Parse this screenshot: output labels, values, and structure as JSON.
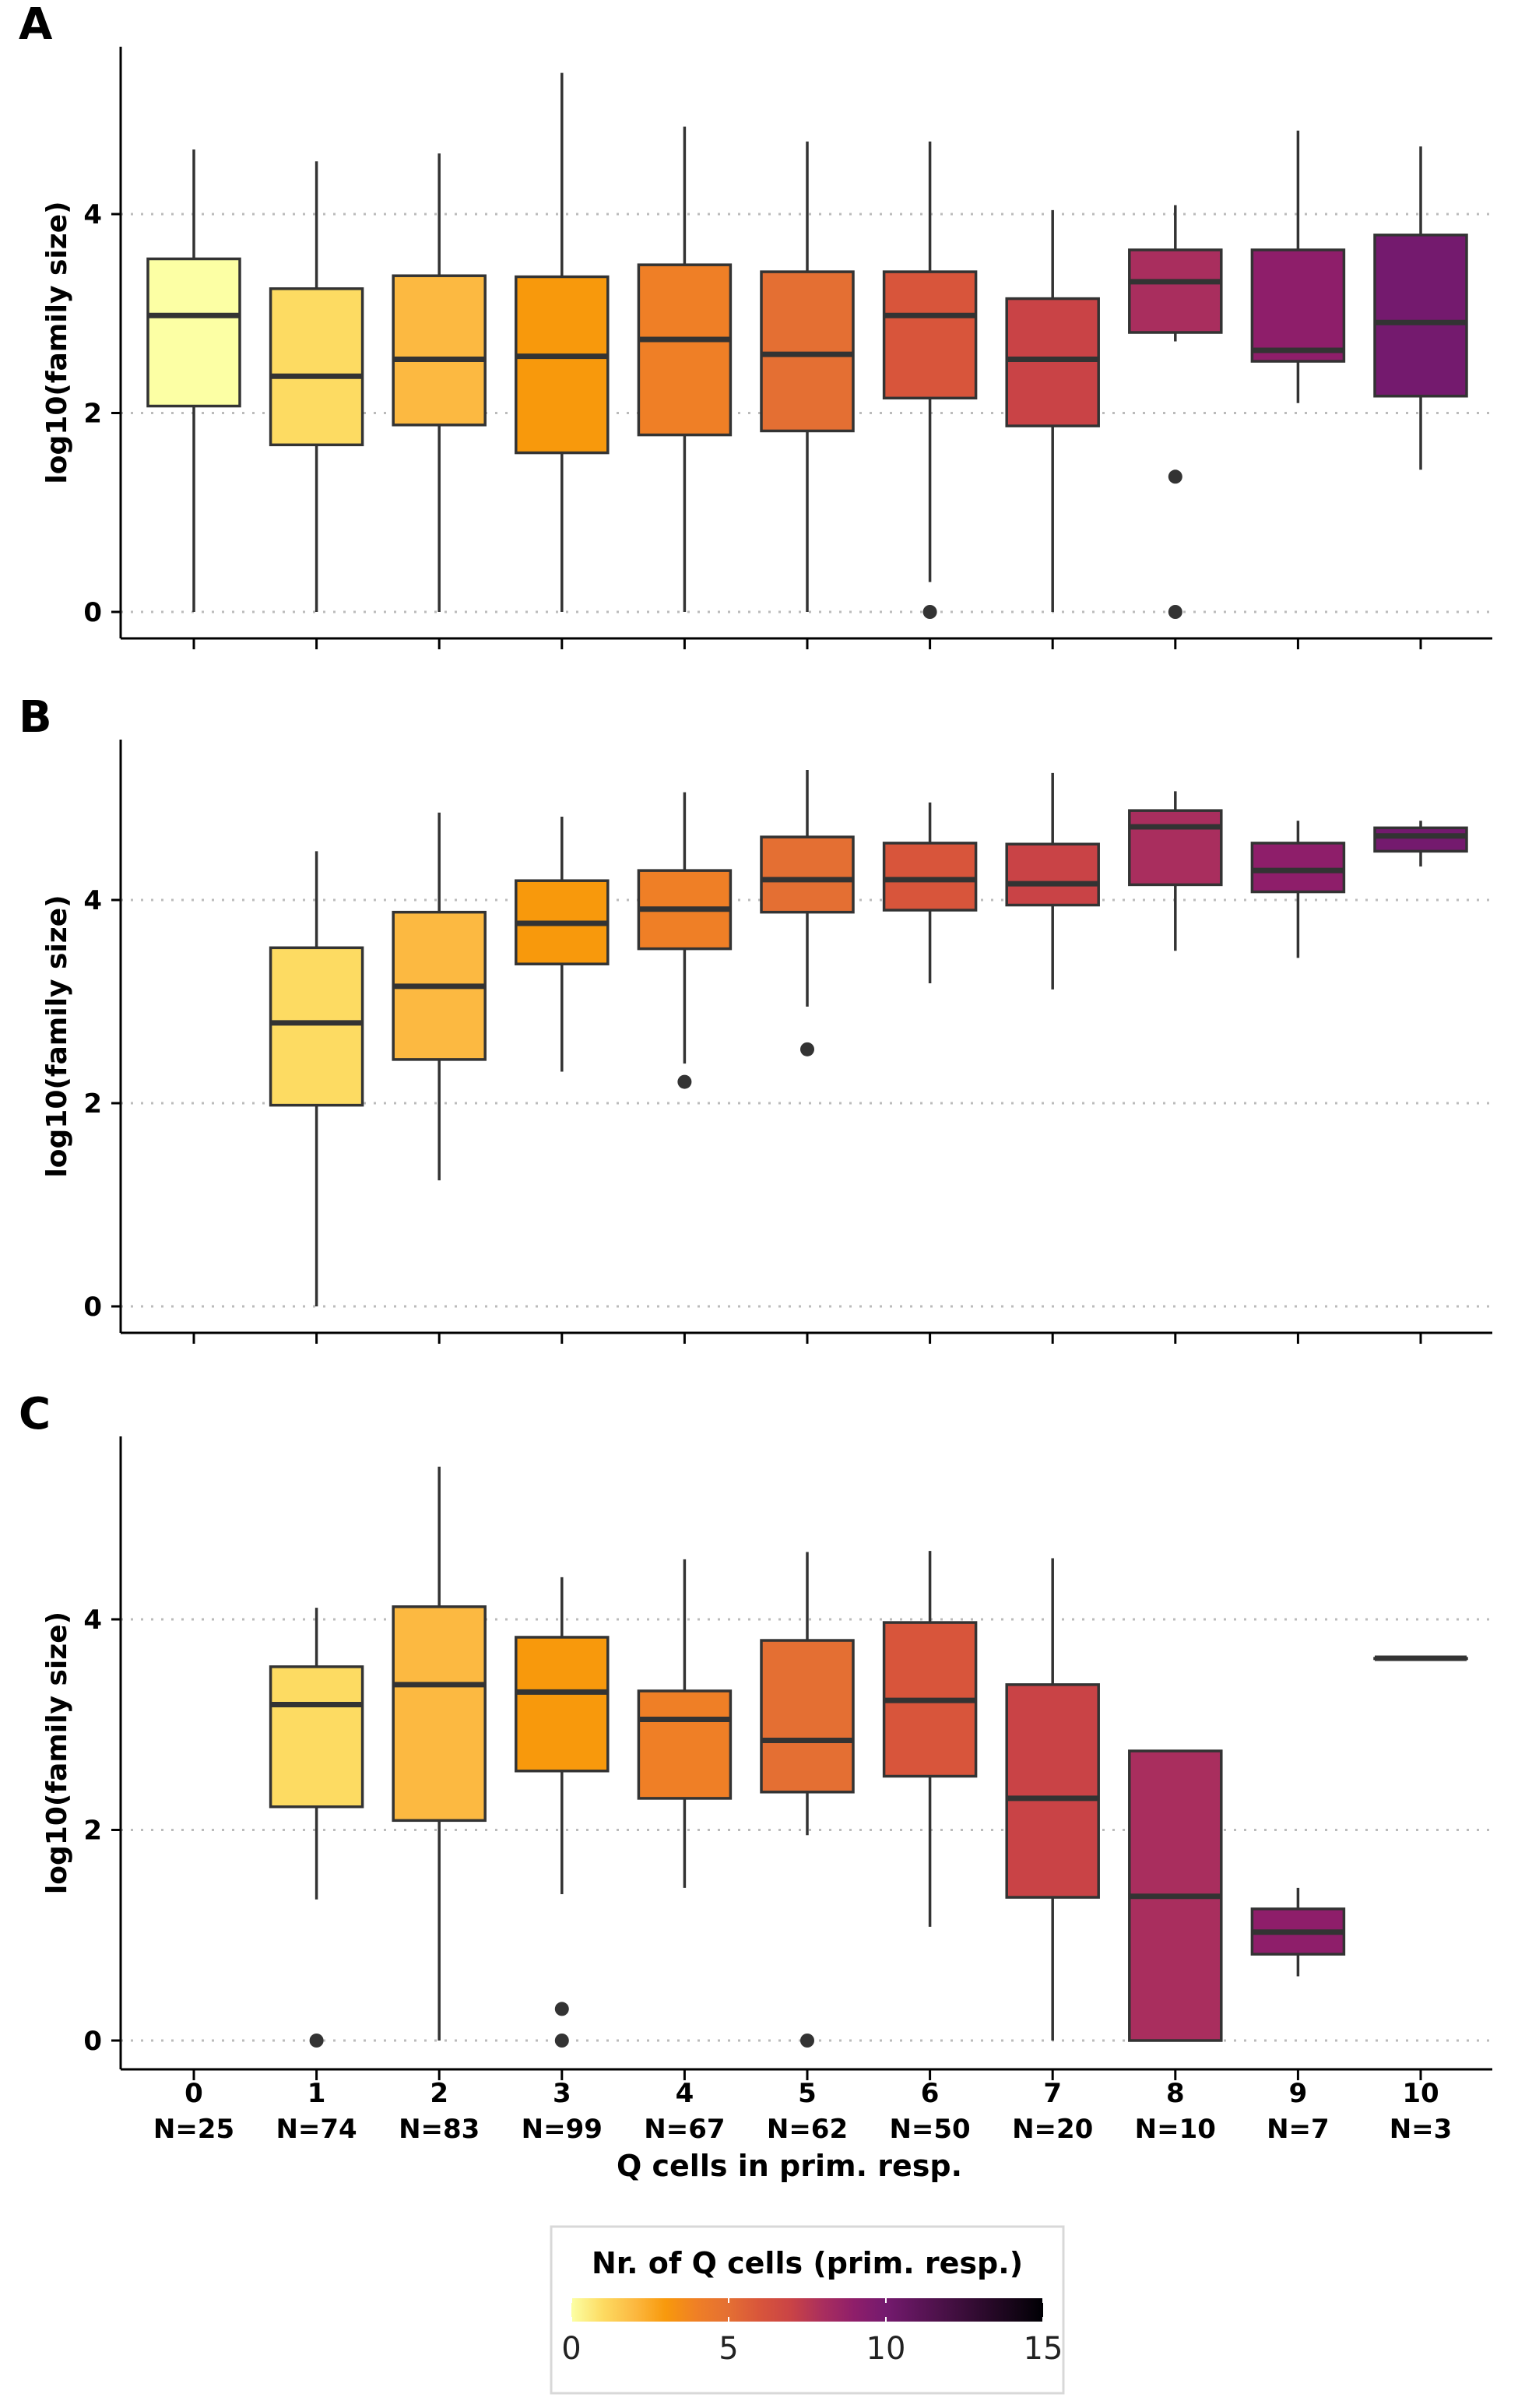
{
  "chart_data": {
    "type": "box",
    "panels": [
      {
        "id": "A",
        "label": "A",
        "ylabel": "log10(family size)",
        "yticks": [
          "0",
          "2",
          "4"
        ],
        "ylim": [
          -0.25,
          5.7
        ],
        "grid": "horizontal dotted",
        "boxes": [
          {
            "x": 0,
            "whislo": 0.0,
            "q1": 2.07,
            "med": 2.98,
            "q3": 3.55,
            "whishi": 4.65,
            "fliers": []
          },
          {
            "x": 1,
            "whislo": 0.0,
            "q1": 1.68,
            "med": 2.37,
            "q3": 3.25,
            "whishi": 4.53,
            "fliers": []
          },
          {
            "x": 2,
            "whislo": 0.0,
            "q1": 1.88,
            "med": 2.54,
            "q3": 3.38,
            "whishi": 4.61,
            "fliers": []
          },
          {
            "x": 3,
            "whislo": 0.0,
            "q1": 1.6,
            "med": 2.57,
            "q3": 3.37,
            "whishi": 5.42,
            "fliers": []
          },
          {
            "x": 4,
            "whislo": 0.0,
            "q1": 1.78,
            "med": 2.74,
            "q3": 3.49,
            "whishi": 4.88,
            "fliers": []
          },
          {
            "x": 5,
            "whislo": 0.0,
            "q1": 1.82,
            "med": 2.59,
            "q3": 3.42,
            "whishi": 4.73,
            "fliers": []
          },
          {
            "x": 6,
            "whislo": 0.3,
            "q1": 2.15,
            "med": 2.98,
            "q3": 3.42,
            "whishi": 4.73,
            "fliers": [
              0.0
            ]
          },
          {
            "x": 7,
            "whislo": 0.0,
            "q1": 1.87,
            "med": 2.54,
            "q3": 3.15,
            "whishi": 4.04,
            "fliers": []
          },
          {
            "x": 8,
            "whislo": 2.72,
            "q1": 2.81,
            "med": 3.32,
            "q3": 3.64,
            "whishi": 4.09,
            "fliers": [
              1.36,
              0.0
            ]
          },
          {
            "x": 9,
            "whislo": 2.1,
            "q1": 2.52,
            "med": 2.63,
            "q3": 3.64,
            "whishi": 4.84,
            "fliers": []
          },
          {
            "x": 10,
            "whislo": 1.43,
            "q1": 2.17,
            "med": 2.91,
            "q3": 3.79,
            "whishi": 4.68,
            "fliers": []
          }
        ]
      },
      {
        "id": "B",
        "label": "B",
        "ylabel": "log10(family size)",
        "yticks": [
          "0",
          "2",
          "4"
        ],
        "ylim": [
          -0.25,
          5.5
        ],
        "grid": "horizontal dotted",
        "boxes": [
          {
            "x": 1,
            "whislo": 0.0,
            "q1": 1.98,
            "med": 2.79,
            "q3": 3.53,
            "whishi": 4.48,
            "fliers": []
          },
          {
            "x": 2,
            "whislo": 1.24,
            "q1": 2.43,
            "med": 3.15,
            "q3": 3.88,
            "whishi": 4.86,
            "fliers": []
          },
          {
            "x": 3,
            "whislo": 2.31,
            "q1": 3.37,
            "med": 3.77,
            "q3": 4.19,
            "whishi": 4.82,
            "fliers": []
          },
          {
            "x": 4,
            "whislo": 2.39,
            "q1": 3.52,
            "med": 3.91,
            "q3": 4.29,
            "whishi": 5.06,
            "fliers": [
              2.21
            ]
          },
          {
            "x": 5,
            "whislo": 2.95,
            "q1": 3.88,
            "med": 4.2,
            "q3": 4.62,
            "whishi": 5.28,
            "fliers": [
              2.53
            ]
          },
          {
            "x": 6,
            "whislo": 3.18,
            "q1": 3.9,
            "med": 4.2,
            "q3": 4.56,
            "whishi": 4.96,
            "fliers": []
          },
          {
            "x": 7,
            "whislo": 3.12,
            "q1": 3.95,
            "med": 4.16,
            "q3": 4.55,
            "whishi": 5.25,
            "fliers": []
          },
          {
            "x": 8,
            "whislo": 3.5,
            "q1": 4.15,
            "med": 4.72,
            "q3": 4.88,
            "whishi": 5.07,
            "fliers": []
          },
          {
            "x": 9,
            "whislo": 3.43,
            "q1": 4.08,
            "med": 4.29,
            "q3": 4.56,
            "whishi": 4.78,
            "fliers": []
          },
          {
            "x": 10,
            "whislo": 4.33,
            "q1": 4.48,
            "med": 4.63,
            "q3": 4.71,
            "whishi": 4.78,
            "fliers": []
          }
        ]
      },
      {
        "id": "C",
        "label": "C",
        "ylabel": "log10(family size)",
        "yticks": [
          "0",
          "2",
          "4"
        ],
        "ylim": [
          -0.25,
          5.7
        ],
        "grid": "horizontal dotted",
        "boxes": [
          {
            "x": 1,
            "whislo": 1.34,
            "q1": 2.22,
            "med": 3.19,
            "q3": 3.55,
            "whishi": 4.11,
            "fliers": [
              0.0
            ]
          },
          {
            "x": 2,
            "whislo": 0.0,
            "q1": 2.09,
            "med": 3.38,
            "q3": 4.12,
            "whishi": 5.45,
            "fliers": []
          },
          {
            "x": 3,
            "whislo": 1.39,
            "q1": 2.56,
            "med": 3.31,
            "q3": 3.83,
            "whishi": 4.4,
            "fliers": [
              0.3,
              0.0
            ]
          },
          {
            "x": 4,
            "whislo": 1.45,
            "q1": 2.3,
            "med": 3.05,
            "q3": 3.32,
            "whishi": 4.57,
            "fliers": []
          },
          {
            "x": 5,
            "whislo": 1.95,
            "q1": 2.36,
            "med": 2.85,
            "q3": 3.8,
            "whishi": 4.64,
            "fliers": [
              0.0
            ]
          },
          {
            "x": 6,
            "whislo": 1.08,
            "q1": 2.51,
            "med": 3.23,
            "q3": 3.97,
            "whishi": 4.65,
            "fliers": []
          },
          {
            "x": 7,
            "whislo": 0.0,
            "q1": 1.36,
            "med": 2.3,
            "q3": 3.38,
            "whishi": 4.58,
            "fliers": []
          },
          {
            "x": 8,
            "whislo": 0.0,
            "q1": 0.0,
            "med": 1.37,
            "q3": 2.75,
            "whishi": 2.75,
            "fliers": []
          },
          {
            "x": 9,
            "whislo": 0.61,
            "q1": 0.82,
            "med": 1.03,
            "q3": 1.25,
            "whishi": 1.45,
            "fliers": []
          },
          {
            "x": 10,
            "whislo": 3.63,
            "q1": 3.63,
            "med": 3.63,
            "q3": 3.63,
            "whishi": 3.63,
            "fliers": []
          }
        ]
      }
    ],
    "categories": [
      "0",
      "1",
      "2",
      "3",
      "4",
      "5",
      "6",
      "7",
      "8",
      "9",
      "10"
    ],
    "counts": [
      "N=25",
      "N=74",
      "N=83",
      "N=99",
      "N=67",
      "N=62",
      "N=50",
      "N=20",
      "N=10",
      "N=7",
      "N=3"
    ],
    "xlabel": "Q cells in prim. resp.",
    "legend": {
      "title": "Nr. of Q cells (prim. resp.)",
      "ticks": [
        "0",
        "5",
        "10",
        "15"
      ],
      "range": [
        0,
        15
      ],
      "placement": "bottom-center",
      "colors": [
        "#fcffa4",
        "#fddb62",
        "#fcb941",
        "#f8990c",
        "#ef7f26",
        "#e46f33",
        "#d8553b",
        "#c94346",
        "#a92e5e",
        "#8e1e6a",
        "#741a6e",
        "#000004"
      ]
    }
  }
}
